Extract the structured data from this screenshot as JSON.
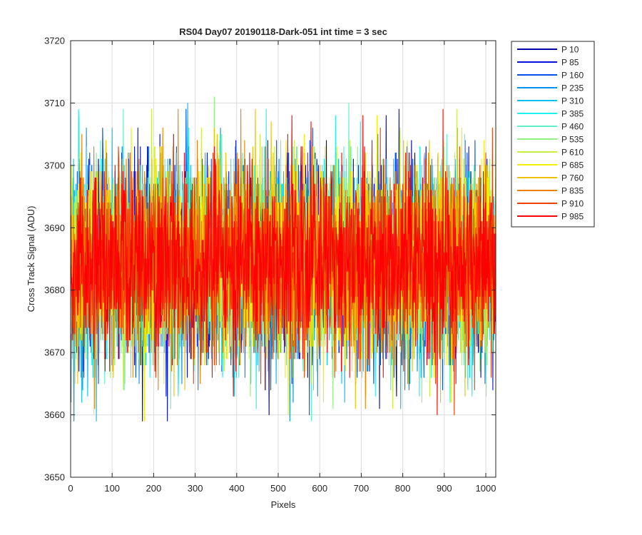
{
  "chart_data": {
    "type": "line",
    "title": "RS04 Day07 20190118-Dark-051 int time = 3 sec",
    "xlabel": "Pixels",
    "ylabel": "Cross Track Signal (ADU)",
    "xlim": [
      0,
      1024
    ],
    "ylim": [
      3650,
      3720
    ],
    "xticks": [
      0,
      100,
      200,
      300,
      400,
      500,
      600,
      700,
      800,
      900,
      1000
    ],
    "yticks": [
      3650,
      3660,
      3670,
      3680,
      3690,
      3700,
      3710,
      3720
    ],
    "grid": true,
    "legend_position": "outside-top-right",
    "x_points": 1024,
    "series": [
      {
        "name": "P 10",
        "color": "#0000aa",
        "mean": 3684.5,
        "spread": 7.5,
        "min": 3659,
        "max": 3710
      },
      {
        "name": "P 85",
        "color": "#0010dd",
        "mean": 3684.5,
        "spread": 7.5,
        "min": 3659,
        "max": 3710
      },
      {
        "name": "P 160",
        "color": "#0050ee",
        "mean": 3684.5,
        "spread": 7.5,
        "min": 3660,
        "max": 3709
      },
      {
        "name": "P 235",
        "color": "#0090f0",
        "mean": 3684.5,
        "spread": 7.5,
        "min": 3659,
        "max": 3709
      },
      {
        "name": "P 310",
        "color": "#00c0f0",
        "mean": 3684.5,
        "spread": 7.5,
        "min": 3659,
        "max": 3710
      },
      {
        "name": "P 385",
        "color": "#20f0f0",
        "mean": 3684.5,
        "spread": 7.5,
        "min": 3660,
        "max": 3709
      },
      {
        "name": "P 460",
        "color": "#60f0c8",
        "mean": 3684.5,
        "spread": 7.5,
        "min": 3652,
        "max": 3710
      },
      {
        "name": "P 535",
        "color": "#90f080",
        "mean": 3684.5,
        "spread": 7.5,
        "min": 3658,
        "max": 3711
      },
      {
        "name": "P 610",
        "color": "#c8f040",
        "mean": 3684.5,
        "spread": 7.5,
        "min": 3658,
        "max": 3709
      },
      {
        "name": "P 685",
        "color": "#f0f000",
        "mean": 3684.5,
        "spread": 7.5,
        "min": 3659,
        "max": 3709
      },
      {
        "name": "P 760",
        "color": "#f0c000",
        "mean": 3684.5,
        "spread": 7.5,
        "min": 3657,
        "max": 3709
      },
      {
        "name": "P 835",
        "color": "#f08000",
        "mean": 3684.5,
        "spread": 7.5,
        "min": 3657,
        "max": 3709
      },
      {
        "name": "P 910",
        "color": "#f04000",
        "mean": 3684.5,
        "spread": 7.5,
        "min": 3658,
        "max": 3711
      },
      {
        "name": "P 985",
        "color": "#ff0000",
        "mean": 3684.5,
        "spread": 7.5,
        "min": 3660,
        "max": 3709
      }
    ]
  }
}
